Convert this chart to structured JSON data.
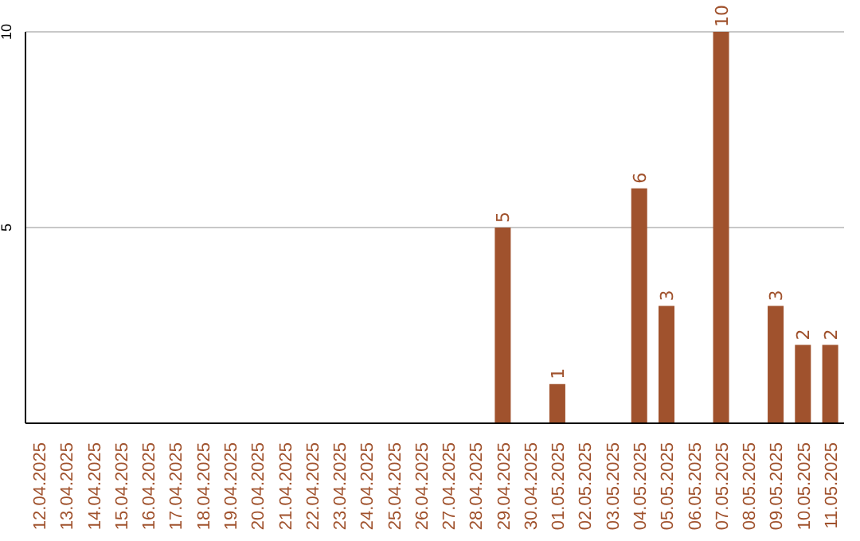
{
  "chart_data": {
    "type": "bar",
    "categories": [
      "12.04.2025",
      "13.04.2025",
      "14.04.2025",
      "15.04.2025",
      "16.04.2025",
      "17.04.2025",
      "18.04.2025",
      "19.04.2025",
      "20.04.2025",
      "21.04.2025",
      "22.04.2025",
      "23.04.2025",
      "24.04.2025",
      "25.04.2025",
      "26.04.2025",
      "27.04.2025",
      "28.04.2025",
      "29.04.2025",
      "30.04.2025",
      "01.05.2025",
      "02.05.2025",
      "03.05.2025",
      "04.05.2025",
      "05.05.2025",
      "06.05.2025",
      "07.05.2025",
      "08.05.2025",
      "09.05.2025",
      "10.05.2025",
      "11.05.2025"
    ],
    "values": [
      0,
      0,
      0,
      0,
      0,
      0,
      0,
      0,
      0,
      0,
      0,
      0,
      0,
      0,
      0,
      0,
      0,
      5,
      0,
      1,
      0,
      0,
      6,
      3,
      0,
      10,
      0,
      3,
      2,
      2
    ],
    "value_labels": [
      null,
      null,
      null,
      null,
      null,
      null,
      null,
      null,
      null,
      null,
      null,
      null,
      null,
      null,
      null,
      null,
      null,
      "5",
      null,
      "1",
      null,
      null,
      "6",
      "3",
      null,
      "10",
      null,
      "3",
      "2",
      "2"
    ],
    "color": "#a0522d",
    "ylim": [
      0,
      10
    ],
    "yticks": [
      {
        "value": 0,
        "label": null
      },
      5,
      10
    ],
    "grid": "y"
  }
}
